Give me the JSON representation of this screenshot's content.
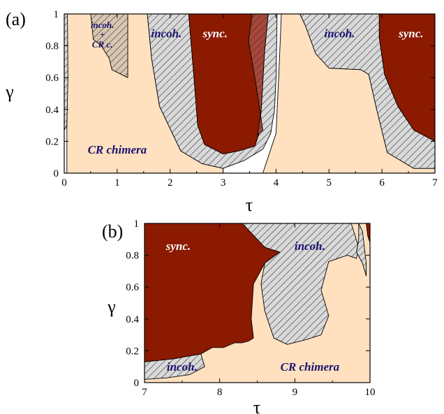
{
  "colors": {
    "chimera": "#ffe0bf",
    "sync": "#8b1a00",
    "incoh_fill": "#d9d9d9",
    "label_dark": "#1a1470",
    "label_light": "#ffffff",
    "hatch": "#333333"
  },
  "chart_data": [
    {
      "panel_label": "(a)",
      "type": "area",
      "xlabel": "τ",
      "ylabel": "γ",
      "xlim": [
        0,
        7
      ],
      "ylim": [
        0,
        1
      ],
      "x_ticks": [
        "0",
        "1",
        "2",
        "3",
        "4",
        "5",
        "6",
        "7"
      ],
      "y_ticks": [
        "0",
        "0.2",
        "0.4",
        "0.6",
        "0.8",
        "1"
      ],
      "regions": [
        {
          "label": "CR chimera",
          "kind": "chimera",
          "label_pos": [
            1,
            0.15
          ],
          "polygons": [
            [
              [
                0.05,
                0
              ],
              [
                3.0,
                0
              ],
              [
                3.0,
                0.03
              ],
              [
                2.6,
                0.06
              ],
              [
                2.2,
                0.14
              ],
              [
                1.8,
                0.42
              ],
              [
                1.65,
                0.72
              ],
              [
                1.57,
                1
              ],
              [
                0.05,
                1
              ]
            ],
            [
              [
                3.75,
                0
              ],
              [
                7,
                0
              ],
              [
                7,
                0.03
              ],
              [
                6.6,
                0.03
              ],
              [
                6.1,
                0.13
              ],
              [
                5.9,
                0.4
              ],
              [
                5.75,
                0.62
              ],
              [
                5.6,
                0.65
              ],
              [
                5.0,
                0.66
              ],
              [
                4.75,
                0.75
              ],
              [
                4.55,
                0.93
              ],
              [
                4.45,
                1
              ],
              [
                4.1,
                1
              ],
              [
                4.05,
                0.6
              ],
              [
                4.0,
                0.25
              ],
              [
                3.9,
                0.15
              ]
            ]
          ]
        },
        {
          "label": "incoh.",
          "kind": "incoh",
          "label_pos": [
            1.93,
            0.88
          ],
          "polygons": [
            [
              [
                0,
                0.27
              ],
              [
                0.05,
                0.3
              ],
              [
                0.07,
                0.6
              ],
              [
                0.06,
                1
              ],
              [
                0,
                1
              ]
            ],
            [
              [
                1.57,
                1
              ],
              [
                1.65,
                0.72
              ],
              [
                1.8,
                0.42
              ],
              [
                2.2,
                0.14
              ],
              [
                2.6,
                0.06
              ],
              [
                3.0,
                0.03
              ],
              [
                3.4,
                0.08
              ],
              [
                3.75,
                0.15
              ],
              [
                3.9,
                0.25
              ],
              [
                3.97,
                0.4
              ],
              [
                4.0,
                0.6
              ],
              [
                4.02,
                1
              ],
              [
                3.85,
                1
              ],
              [
                3.78,
                0.75
              ],
              [
                3.72,
                0.4
              ],
              [
                3.68,
                0.25
              ],
              [
                3.6,
                0.17
              ],
              [
                3.3,
                0.14
              ],
              [
                3.0,
                0.12
              ],
              [
                2.65,
                0.18
              ],
              [
                2.52,
                0.3
              ],
              [
                2.45,
                0.6
              ],
              [
                2.35,
                1
              ]
            ]
          ]
        },
        {
          "label": "incoh.",
          "kind": "incoh",
          "label_pos": [
            5.2,
            0.88
          ],
          "polygons": [
            [
              [
                4.45,
                1
              ],
              [
                4.55,
                0.93
              ],
              [
                4.75,
                0.75
              ],
              [
                5.0,
                0.66
              ],
              [
                5.6,
                0.65
              ],
              [
                5.75,
                0.62
              ],
              [
                5.9,
                0.4
              ],
              [
                6.1,
                0.13
              ],
              [
                6.6,
                0.03
              ],
              [
                7,
                0.03
              ],
              [
                7,
                0.2
              ],
              [
                6.6,
                0.27
              ],
              [
                6.3,
                0.42
              ],
              [
                6.05,
                0.62
              ],
              [
                5.95,
                0.85
              ],
              [
                5.95,
                1
              ]
            ]
          ]
        },
        {
          "label": "sync.",
          "kind": "sync",
          "label_pos": [
            2.85,
            0.88
          ],
          "polygons": [
            [
              [
                2.35,
                1
              ],
              [
                2.45,
                0.6
              ],
              [
                2.52,
                0.3
              ],
              [
                2.65,
                0.18
              ],
              [
                3.0,
                0.12
              ],
              [
                3.3,
                0.14
              ],
              [
                3.6,
                0.17
              ],
              [
                3.68,
                0.25
              ],
              [
                3.72,
                0.4
              ],
              [
                3.78,
                0.75
              ],
              [
                3.85,
                1
              ]
            ]
          ]
        },
        {
          "label": "sync.",
          "kind": "sync",
          "label_pos": [
            6.55,
            0.88
          ],
          "polygons": [
            [
              [
                5.95,
                1
              ],
              [
                5.95,
                0.85
              ],
              [
                6.05,
                0.62
              ],
              [
                6.3,
                0.42
              ],
              [
                6.6,
                0.27
              ],
              [
                7,
                0.2
              ],
              [
                7,
                1
              ]
            ]
          ]
        },
        {
          "label": "incoh. + CR c.",
          "kind": "mixed",
          "label_pos": [
            0.72,
            0.86
          ],
          "label_lines": [
            "incoh.",
            "+",
            "CR c."
          ],
          "polygons": [
            [
              [
                0.5,
                1
              ],
              [
                0.55,
                0.84
              ],
              [
                0.7,
                0.8
              ],
              [
                0.85,
                0.72
              ],
              [
                0.9,
                0.65
              ],
              [
                1.2,
                0.6
              ],
              [
                1.2,
                1
              ]
            ]
          ]
        },
        {
          "label": "",
          "kind": "sync_hatched",
          "polygons": [
            [
              [
                3.55,
                1
              ],
              [
                3.48,
                0.83
              ],
              [
                3.62,
                0.56
              ],
              [
                3.75,
                0.27
              ],
              [
                3.65,
                0.24
              ],
              [
                3.72,
                0.4
              ],
              [
                3.78,
                0.75
              ],
              [
                3.85,
                1
              ]
            ]
          ]
        }
      ]
    },
    {
      "panel_label": "(b)",
      "type": "area",
      "xlabel": "τ",
      "ylabel": "γ",
      "xlim": [
        7,
        10
      ],
      "ylim": [
        0,
        1
      ],
      "x_ticks": [
        "7",
        "8",
        "9",
        "10"
      ],
      "y_ticks": [
        "0",
        "0.2",
        "0.4",
        "0.6",
        "0.8",
        "1"
      ],
      "regions": [
        {
          "label": "CR chimera",
          "kind": "chimera",
          "label_pos": [
            9.2,
            0.1
          ],
          "polygons": [
            [
              [
                7,
                0
              ],
              [
                10,
                0
              ],
              [
                10,
                1
              ],
              [
                7,
                1
              ]
            ]
          ]
        },
        {
          "label": "sync.",
          "kind": "sync",
          "label_pos": [
            7.45,
            0.86
          ],
          "polygons": [
            [
              [
                7,
                1
              ],
              [
                8.3,
                1
              ],
              [
                8.6,
                0.85
              ],
              [
                8.8,
                0.82
              ],
              [
                8.6,
                0.75
              ],
              [
                8.45,
                0.62
              ],
              [
                8.42,
                0.4
              ],
              [
                8.45,
                0.28
              ],
              [
                8.38,
                0.26
              ],
              [
                8.3,
                0.25
              ],
              [
                8.2,
                0.25
              ],
              [
                8.05,
                0.22
              ],
              [
                7.9,
                0.22
              ],
              [
                7.75,
                0.18
              ],
              [
                7.4,
                0.15
              ],
              [
                7,
                0.13
              ]
            ]
          ]
        },
        {
          "label": "incoh.",
          "kind": "incoh",
          "label_pos": [
            9.2,
            0.86
          ],
          "polygons": [
            [
              [
                8.3,
                1
              ],
              [
                9.75,
                1
              ],
              [
                9.85,
                0.85
              ],
              [
                9.82,
                0.78
              ],
              [
                9.7,
                0.8
              ],
              [
                9.45,
                0.76
              ],
              [
                9.35,
                0.58
              ],
              [
                9.45,
                0.42
              ],
              [
                9.35,
                0.3
              ],
              [
                9.15,
                0.27
              ],
              [
                8.9,
                0.24
              ],
              [
                8.72,
                0.28
              ],
              [
                8.6,
                0.45
              ],
              [
                8.55,
                0.62
              ],
              [
                8.6,
                0.75
              ],
              [
                8.8,
                0.82
              ],
              [
                8.6,
                0.85
              ]
            ]
          ]
        },
        {
          "label": "incoh.",
          "kind": "incoh",
          "label_pos": [
            7.5,
            0.1
          ],
          "polygons": [
            [
              [
                7,
                0.13
              ],
              [
                7.4,
                0.15
              ],
              [
                7.75,
                0.18
              ],
              [
                7.8,
                0.1
              ],
              [
                7.6,
                0.05
              ],
              [
                7.3,
                0.03
              ],
              [
                7,
                0.02
              ]
            ]
          ]
        },
        {
          "label": "",
          "kind": "incoh",
          "polygons": [
            [
              [
                9.85,
                1
              ],
              [
                9.9,
                0.95
              ],
              [
                9.95,
                0.75
              ],
              [
                9.95,
                0.67
              ],
              [
                9.9,
                0.75
              ],
              [
                9.82,
                0.82
              ],
              [
                9.85,
                0.9
              ]
            ]
          ]
        },
        {
          "label": "",
          "kind": "sync",
          "polygons": [
            [
              [
                9.95,
                1
              ],
              [
                10,
                1
              ],
              [
                10,
                0.88
              ],
              [
                9.97,
                0.92
              ]
            ]
          ]
        }
      ]
    }
  ]
}
